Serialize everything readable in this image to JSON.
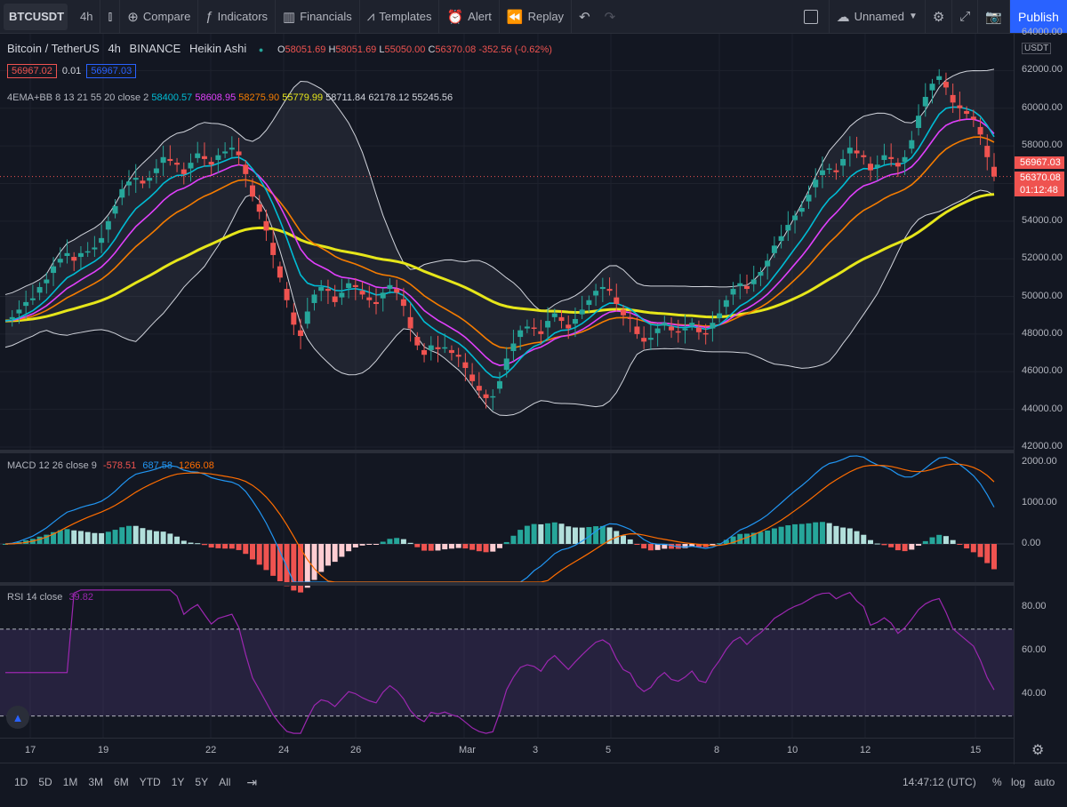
{
  "toolbar": {
    "symbol": "BTCUSDT",
    "interval": "4h",
    "compare": "Compare",
    "indicators": "Indicators",
    "financials": "Financials",
    "templates": "Templates",
    "alert": "Alert",
    "replay": "Replay",
    "layout_name": "Unnamed",
    "publish": "Publish"
  },
  "legend": {
    "title": "Bitcoin / TetherUS",
    "interval": "4h",
    "exchange": "BINANCE",
    "chart_type": "Heikin Ashi",
    "ohlc": {
      "o_label": "O",
      "o": "58051.69",
      "h_label": "H",
      "h": "58051.69",
      "l_label": "L",
      "l": "55050.00",
      "c_label": "C",
      "c": "56370.08",
      "chg": "-352.56 (-0.62%)"
    },
    "sell": "56967.02",
    "spread": "0.01",
    "buy": "56967.03",
    "ema_name": "4EMA+BB 8 13 21 55 20 close 2",
    "ema_vals": [
      "58400.57",
      "58608.95",
      "58275.90",
      "55779.99",
      "58711.84",
      "62178.12",
      "55245.56"
    ],
    "macd_name": "MACD 12 26 close 9",
    "macd_vals": [
      "-578.51",
      "687.58",
      "1266.08"
    ],
    "rsi_name": "RSI 14 close",
    "rsi_val": "39.82"
  },
  "price_axis": {
    "currency": "USDT",
    "ticks": [
      "64000.00",
      "62000.00",
      "60000.00",
      "58000.00",
      "56000.00",
      "54000.00",
      "52000.00",
      "50000.00",
      "48000.00",
      "46000.00",
      "44000.00",
      "42000.00"
    ],
    "tag_high": "56967.03",
    "tag_last": "56370.08",
    "tag_countdown": "01:12:48",
    "macd_ticks": [
      "2000.00",
      "1000.00",
      "0.00"
    ],
    "rsi_ticks": [
      "80.00",
      "60.00",
      "40.00"
    ]
  },
  "time_axis": [
    "17",
    "19",
    "22",
    "24",
    "26",
    "Mar",
    "3",
    "5",
    "8",
    "10",
    "12",
    "15"
  ],
  "bottom": {
    "ranges": [
      "1D",
      "5D",
      "1M",
      "3M",
      "6M",
      "YTD",
      "1Y",
      "5Y",
      "All"
    ],
    "clock": "14:47:12 (UTC)",
    "pct": "%",
    "log": "log",
    "auto": "auto"
  },
  "colors": {
    "up": "#26a69a",
    "down": "#ef5350",
    "ema8": "#00bcd4",
    "ema13": "#e040fb",
    "ema21": "#f57c00",
    "ema55": "#e6e61a",
    "bb": "#d1d4dc",
    "macd": "#2196f3",
    "signal": "#ff6d00",
    "rsi": "#9c27b0"
  },
  "chart_data": {
    "type": "candlestick",
    "price_range": [
      42000,
      64000
    ],
    "closes": [
      48700,
      48900,
      49300,
      49700,
      49900,
      50500,
      50900,
      51600,
      52000,
      52300,
      51900,
      52300,
      52400,
      52600,
      53100,
      54000,
      54800,
      55700,
      56100,
      56300,
      56000,
      56300,
      56800,
      57400,
      57200,
      57000,
      56500,
      57100,
      57600,
      57300,
      57000,
      57500,
      57700,
      57900,
      57500,
      56500,
      55300,
      54500,
      53500,
      52200,
      51000,
      49800,
      48500,
      47900,
      49200,
      50100,
      50500,
      50300,
      49700,
      50200,
      50700,
      50500,
      50100,
      49800,
      49600,
      50200,
      50600,
      50200,
      49500,
      48300,
      47400,
      46900,
      47400,
      47200,
      47300,
      47000,
      46800,
      46200,
      45500,
      45000,
      44600,
      44700,
      45500,
      46700,
      47500,
      48200,
      48400,
      48300,
      48000,
      48700,
      49100,
      48700,
      48300,
      48800,
      49300,
      49800,
      50300,
      50500,
      50300,
      49600,
      49000,
      48800,
      48000,
      47600,
      47800,
      48300,
      48600,
      48200,
      48100,
      48300,
      48600,
      48100,
      48000,
      48600,
      49100,
      49800,
      50400,
      50700,
      50400,
      50900,
      51300,
      51900,
      52700,
      53200,
      53800,
      54300,
      54700,
      55400,
      56200,
      56700,
      56800,
      56600,
      57300,
      57900,
      57600,
      57400,
      56700,
      57000,
      57500,
      57300,
      56900,
      57400,
      58300,
      59600,
      60600,
      61300,
      61700,
      61100,
      60300,
      60000,
      59700,
      59400,
      58600,
      57400,
      56370
    ],
    "macd": {
      "range": [
        -1000,
        2000
      ]
    },
    "rsi": {
      "range": [
        20,
        90
      ],
      "bands": [
        70,
        30
      ]
    }
  }
}
